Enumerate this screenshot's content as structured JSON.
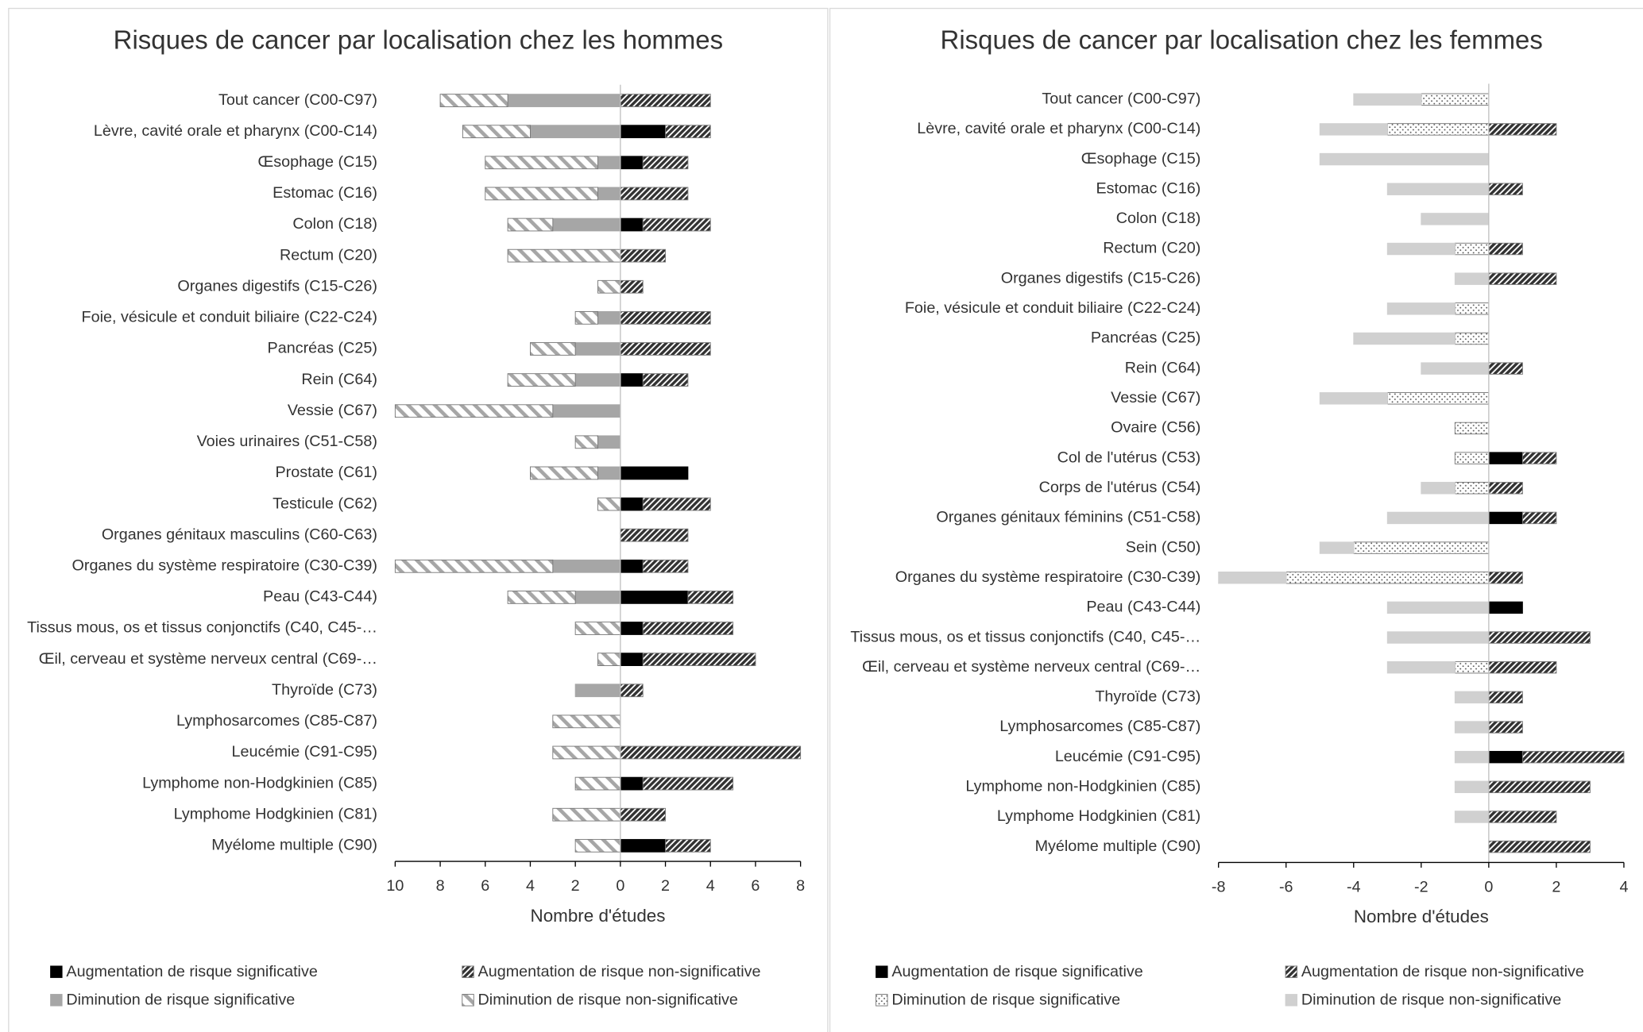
{
  "chart_data": [
    {
      "type": "bar",
      "orientation": "horizontal",
      "stacked": true,
      "title": "Risques de cancer par localisation chez les hommes",
      "xlabel": "Nombre d'études",
      "categories": [
        "Tout cancer (C00-C97)",
        "Lèvre, cavité orale et pharynx (C00-C14)",
        "Œsophage (C15)",
        "Estomac (C16)",
        "Colon (C18)",
        "Rectum (C20)",
        "Organes digestifs (C15-C26)",
        "Foie, vésicule et conduit biliaire (C22-C24)",
        "Pancréas (C25)",
        "Rein (C64)",
        "Vessie (C67)",
        "Voies urinaires (C51-C58)",
        "Prostate (C61)",
        "Testicule (C62)",
        "Organes génitaux masculins (C60-C63)",
        "Organes du système respiratoire (C30-C39)",
        "Peau (C43-C44)",
        "Tissus mous, os et tissus conjonctifs (C40, C45-…",
        "Œil, cerveau et système nerveux central (C69-…",
        "Thyroïde (C73)",
        "Lymphosarcomes (C85-C87)",
        "Leucémie (C91-C95)",
        "Lymphome non-Hodgkinien (C85)",
        "Lymphome Hodgkinien (C81)",
        "Myélome multiple (C90)"
      ],
      "series": [
        {
          "name": "Augmentation de risque significative",
          "color": "#000000",
          "pattern": "solid",
          "values": [
            0,
            2,
            1,
            0,
            1,
            0,
            0,
            0,
            0,
            1,
            0,
            0,
            3,
            1,
            0,
            1,
            3,
            1,
            1,
            0,
            0,
            0,
            1,
            0,
            2
          ]
        },
        {
          "name": "Augmentation de risque non-significative",
          "color": "#333333",
          "pattern": "hatch",
          "values": [
            4,
            2,
            2,
            3,
            3,
            2,
            1,
            4,
            4,
            2,
            0,
            0,
            0,
            3,
            3,
            2,
            2,
            4,
            5,
            1,
            0,
            8,
            4,
            2,
            2
          ]
        },
        {
          "name": "Diminution de risque significative",
          "color": "#a6a6a6",
          "pattern": "solid",
          "values": [
            -5,
            -4,
            -1,
            -1,
            -3,
            0,
            0,
            -1,
            -2,
            -2,
            -3,
            -1,
            -1,
            0,
            0,
            -3,
            -2,
            0,
            0,
            -2,
            0,
            0,
            0,
            0,
            0
          ]
        },
        {
          "name": "Diminution de risque non-significative",
          "color": "#a6a6a6",
          "pattern": "hatch-light",
          "values": [
            -3,
            -3,
            -5,
            -5,
            -2,
            -5,
            -1,
            -1,
            -2,
            -3,
            -7,
            -1,
            -3,
            -1,
            0,
            -7,
            -3,
            -2,
            -1,
            0,
            -3,
            -3,
            -2,
            -3,
            -2
          ]
        }
      ],
      "xlim": [
        -10,
        8
      ],
      "xticks": [
        {
          "value": -10,
          "label": "10"
        },
        {
          "value": -8,
          "label": "8"
        },
        {
          "value": -6,
          "label": "6"
        },
        {
          "value": -4,
          "label": "4"
        },
        {
          "value": -2,
          "label": "2"
        },
        0,
        2,
        4,
        6,
        8
      ]
    },
    {
      "type": "bar",
      "orientation": "horizontal",
      "stacked": true,
      "title": "Risques de cancer par localisation chez les femmes",
      "xlabel": "Nombre d'études",
      "categories": [
        "Tout cancer (C00-C97)",
        "Lèvre, cavité orale et pharynx (C00-C14)",
        "Œsophage (C15)",
        "Estomac (C16)",
        "Colon (C18)",
        "Rectum (C20)",
        "Organes digestifs (C15-C26)",
        "Foie, vésicule et conduit biliaire (C22-C24)",
        "Pancréas (C25)",
        "Rein (C64)",
        "Vessie (C67)",
        "Ovaire (C56)",
        "Col de l'utérus (C53)",
        "Corps de l'utérus (C54)",
        "Organes génitaux féminins (C51-C58)",
        "Sein (C50)",
        "Organes du système respiratoire (C30-C39)",
        "Peau (C43-C44)",
        "Tissus mous, os et tissus conjonctifs (C40, C45-…",
        "Œil, cerveau et système nerveux central (C69-…",
        "Thyroïde (C73)",
        "Lymphosarcomes (C85-C87)",
        "Leucémie (C91-C95)",
        "Lymphome non-Hodgkinien (C85)",
        "Lymphome Hodgkinien (C81)",
        "Myélome multiple (C90)"
      ],
      "series": [
        {
          "name": "Augmentation de risque significative",
          "color": "#000000",
          "pattern": "solid",
          "values": [
            0,
            0,
            0,
            0,
            0,
            0,
            0,
            0,
            0,
            0,
            0,
            0,
            1,
            0,
            1,
            0,
            0,
            1,
            0,
            0,
            0,
            0,
            1,
            0,
            0,
            0
          ]
        },
        {
          "name": "Augmentation de risque non-significative",
          "color": "#333333",
          "pattern": "hatch",
          "values": [
            0,
            2,
            0,
            1,
            0,
            1,
            2,
            0,
            0,
            1,
            0,
            0,
            1,
            1,
            1,
            0,
            1,
            0,
            3,
            2,
            1,
            1,
            3,
            3,
            2,
            3
          ]
        },
        {
          "name": "Diminution de risque significative",
          "color": "#555555",
          "pattern": "dots",
          "values": [
            -2,
            -3,
            0,
            0,
            0,
            -1,
            0,
            -1,
            -1,
            0,
            -3,
            -1,
            -1,
            -1,
            0,
            -4,
            -6,
            0,
            0,
            -1,
            0,
            0,
            0,
            0,
            0,
            0
          ]
        },
        {
          "name": "Diminution de risque non-significative",
          "color": "#d0d0d0",
          "pattern": "solid",
          "values": [
            -2,
            -2,
            -5,
            -3,
            -2,
            -2,
            -1,
            -2,
            -3,
            -2,
            -2,
            0,
            0,
            -1,
            -3,
            -1,
            -2,
            -3,
            -3,
            -2,
            -1,
            -1,
            -1,
            -1,
            -1,
            0
          ]
        }
      ],
      "xlim": [
        -8,
        4
      ],
      "xticks": [
        -8,
        -6,
        -4,
        -2,
        0,
        2,
        4
      ]
    }
  ]
}
